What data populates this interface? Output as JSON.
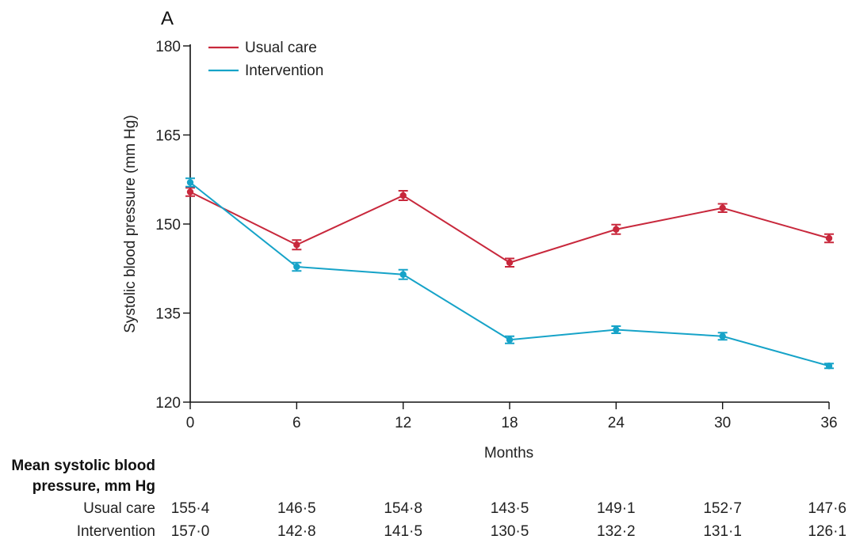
{
  "chart_data": {
    "type": "line",
    "panel_label": "A",
    "ylabel": "Systolic blood pressure (mm Hg)",
    "xlabel": "Months",
    "x": [
      0,
      6,
      12,
      18,
      24,
      30,
      36
    ],
    "x_ticks": [
      "0",
      "6",
      "12",
      "18",
      "24",
      "30",
      "36"
    ],
    "ylim": [
      120,
      180
    ],
    "y_ticks": [
      "120",
      "135",
      "150",
      "165",
      "180"
    ],
    "y_tick_values": [
      120,
      135,
      150,
      165,
      180
    ],
    "grid": false,
    "legend_position": "top-left",
    "series": [
      {
        "name": "Usual care",
        "color": "#c8283c",
        "values": [
          155.4,
          146.5,
          154.8,
          143.5,
          149.1,
          152.7,
          147.6
        ],
        "error": [
          0.7,
          0.8,
          0.8,
          0.7,
          0.8,
          0.7,
          0.7
        ]
      },
      {
        "name": "Intervention",
        "color": "#16a3c8",
        "values": [
          157.0,
          142.8,
          141.5,
          130.5,
          132.2,
          131.1,
          126.1
        ],
        "error": [
          0.7,
          0.7,
          0.8,
          0.6,
          0.6,
          0.6,
          0.4
        ]
      }
    ],
    "table": {
      "title_line1": "Mean systolic blood",
      "title_line2": "pressure, mm Hg",
      "rows": [
        {
          "label": "Usual care",
          "values": [
            "155·4",
            "146·5",
            "154·8",
            "143·5",
            "149·1",
            "152·7",
            "147·6"
          ]
        },
        {
          "label": "Intervention",
          "values": [
            "157·0",
            "142·8",
            "141·5",
            "130·5",
            "132·2",
            "131·1",
            "126·1"
          ]
        }
      ]
    }
  }
}
